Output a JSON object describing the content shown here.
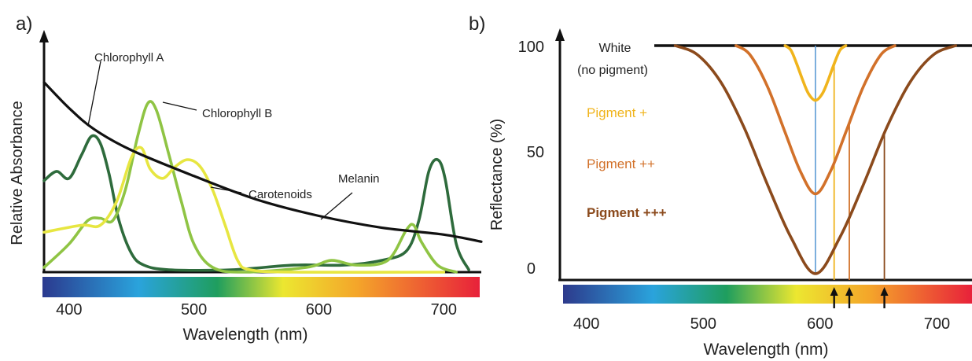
{
  "panels": {
    "a": {
      "label": "a)"
    },
    "b": {
      "label": "b)"
    }
  },
  "chart_data": [
    {
      "type": "line",
      "panel": "a",
      "ylabel": "Relative Absorbance",
      "xlabel": "Wavelength (nm)",
      "xlim": [
        380,
        730
      ],
      "ylim": [
        0,
        1
      ],
      "x_ticks": [
        400,
        500,
        600,
        700
      ],
      "grid": false,
      "spectrum_bar": true,
      "series": [
        {
          "name": "Chlorophyll A",
          "color": "#2e6b3c",
          "points": [
            [
              380,
              0.39
            ],
            [
              390,
              0.43
            ],
            [
              400,
              0.4
            ],
            [
              410,
              0.5
            ],
            [
              418,
              0.58
            ],
            [
              425,
              0.55
            ],
            [
              432,
              0.42
            ],
            [
              440,
              0.22
            ],
            [
              450,
              0.08
            ],
            [
              460,
              0.03
            ],
            [
              480,
              0.01
            ],
            [
              530,
              0.01
            ],
            [
              580,
              0.03
            ],
            [
              620,
              0.03
            ],
            [
              650,
              0.05
            ],
            [
              670,
              0.09
            ],
            [
              680,
              0.22
            ],
            [
              688,
              0.43
            ],
            [
              695,
              0.48
            ],
            [
              701,
              0.4
            ],
            [
              710,
              0.12
            ],
            [
              720,
              0.01
            ]
          ]
        },
        {
          "name": "Chlorophyll B",
          "color": "#8fc444",
          "points": [
            [
              380,
              0.02
            ],
            [
              400,
              0.12
            ],
            [
              415,
              0.22
            ],
            [
              425,
              0.23
            ],
            [
              435,
              0.22
            ],
            [
              445,
              0.35
            ],
            [
              455,
              0.58
            ],
            [
              463,
              0.72
            ],
            [
              470,
              0.69
            ],
            [
              480,
              0.5
            ],
            [
              490,
              0.3
            ],
            [
              500,
              0.12
            ],
            [
              515,
              0.02
            ],
            [
              540,
              0.0
            ],
            [
              590,
              0.02
            ],
            [
              610,
              0.05
            ],
            [
              630,
              0.03
            ],
            [
              655,
              0.05
            ],
            [
              670,
              0.18
            ],
            [
              676,
              0.2
            ],
            [
              682,
              0.13
            ],
            [
              695,
              0.03
            ],
            [
              710,
              0.0
            ]
          ]
        },
        {
          "name": "Carotenoids",
          "color": "#e7e641",
          "points": [
            [
              380,
              0.17
            ],
            [
              410,
              0.2
            ],
            [
              425,
              0.2
            ],
            [
              438,
              0.3
            ],
            [
              450,
              0.49
            ],
            [
              458,
              0.53
            ],
            [
              465,
              0.44
            ],
            [
              475,
              0.4
            ],
            [
              485,
              0.45
            ],
            [
              495,
              0.48
            ],
            [
              505,
              0.45
            ],
            [
              515,
              0.35
            ],
            [
              525,
              0.2
            ],
            [
              535,
              0.05
            ],
            [
              545,
              0.01
            ],
            [
              580,
              0.0
            ],
            [
              700,
              0.0
            ]
          ]
        },
        {
          "name": "Melanin",
          "color": "#111111",
          "points": [
            [
              380,
              0.81
            ],
            [
              400,
              0.7
            ],
            [
              420,
              0.61
            ],
            [
              450,
              0.52
            ],
            [
              500,
              0.41
            ],
            [
              550,
              0.31
            ],
            [
              600,
              0.24
            ],
            [
              650,
              0.19
            ],
            [
              700,
              0.16
            ],
            [
              730,
              0.13
            ]
          ]
        }
      ]
    },
    {
      "type": "line",
      "panel": "b",
      "ylabel": "Reflectance (%)",
      "xlabel": "Wavelength (nm)",
      "xlim": [
        380,
        730
      ],
      "ylim": [
        0,
        100
      ],
      "y_ticks": [
        0,
        50,
        100
      ],
      "x_ticks": [
        400,
        500,
        600,
        700
      ],
      "grid": false,
      "spectrum_bar": true,
      "reference_line": {
        "label": "White\n(no pigment)",
        "value": 100
      },
      "minimum_marker": {
        "x": 596,
        "color": "#5b9bd5"
      },
      "arrows_at": [
        612,
        625,
        655
      ],
      "series": [
        {
          "name": "Pigment +",
          "color": "#f0b41c",
          "min": {
            "x": 596,
            "y": 76
          },
          "marker_x": 612,
          "points": [
            [
              570,
              100
            ],
            [
              575,
              98
            ],
            [
              580,
              92
            ],
            [
              585,
              85
            ],
            [
              590,
              79
            ],
            [
              596,
              76
            ],
            [
              602,
              79
            ],
            [
              607,
              85
            ],
            [
              612,
              92
            ],
            [
              617,
              98
            ],
            [
              622,
              100
            ]
          ]
        },
        {
          "name": "Pigment ++",
          "color": "#d2712a",
          "min": {
            "x": 596,
            "y": 35
          },
          "marker_x": 625,
          "points": [
            [
              528,
              100
            ],
            [
              540,
              96
            ],
            [
              555,
              82
            ],
            [
              570,
              62
            ],
            [
              583,
              45
            ],
            [
              596,
              35
            ],
            [
              609,
              45
            ],
            [
              622,
              62
            ],
            [
              637,
              82
            ],
            [
              652,
              96
            ],
            [
              664,
              100
            ]
          ]
        },
        {
          "name": "Pigment +++",
          "color": "#8b4a1c",
          "min": {
            "x": 596,
            "y": 0
          },
          "marker_x": 655,
          "points": [
            [
              476,
              100
            ],
            [
              495,
              96
            ],
            [
              515,
              84
            ],
            [
              535,
              64
            ],
            [
              555,
              39
            ],
            [
              575,
              16
            ],
            [
              596,
              0
            ],
            [
              617,
              16
            ],
            [
              637,
              39
            ],
            [
              657,
              64
            ],
            [
              677,
              84
            ],
            [
              697,
              96
            ],
            [
              716,
              100
            ]
          ]
        }
      ]
    }
  ]
}
